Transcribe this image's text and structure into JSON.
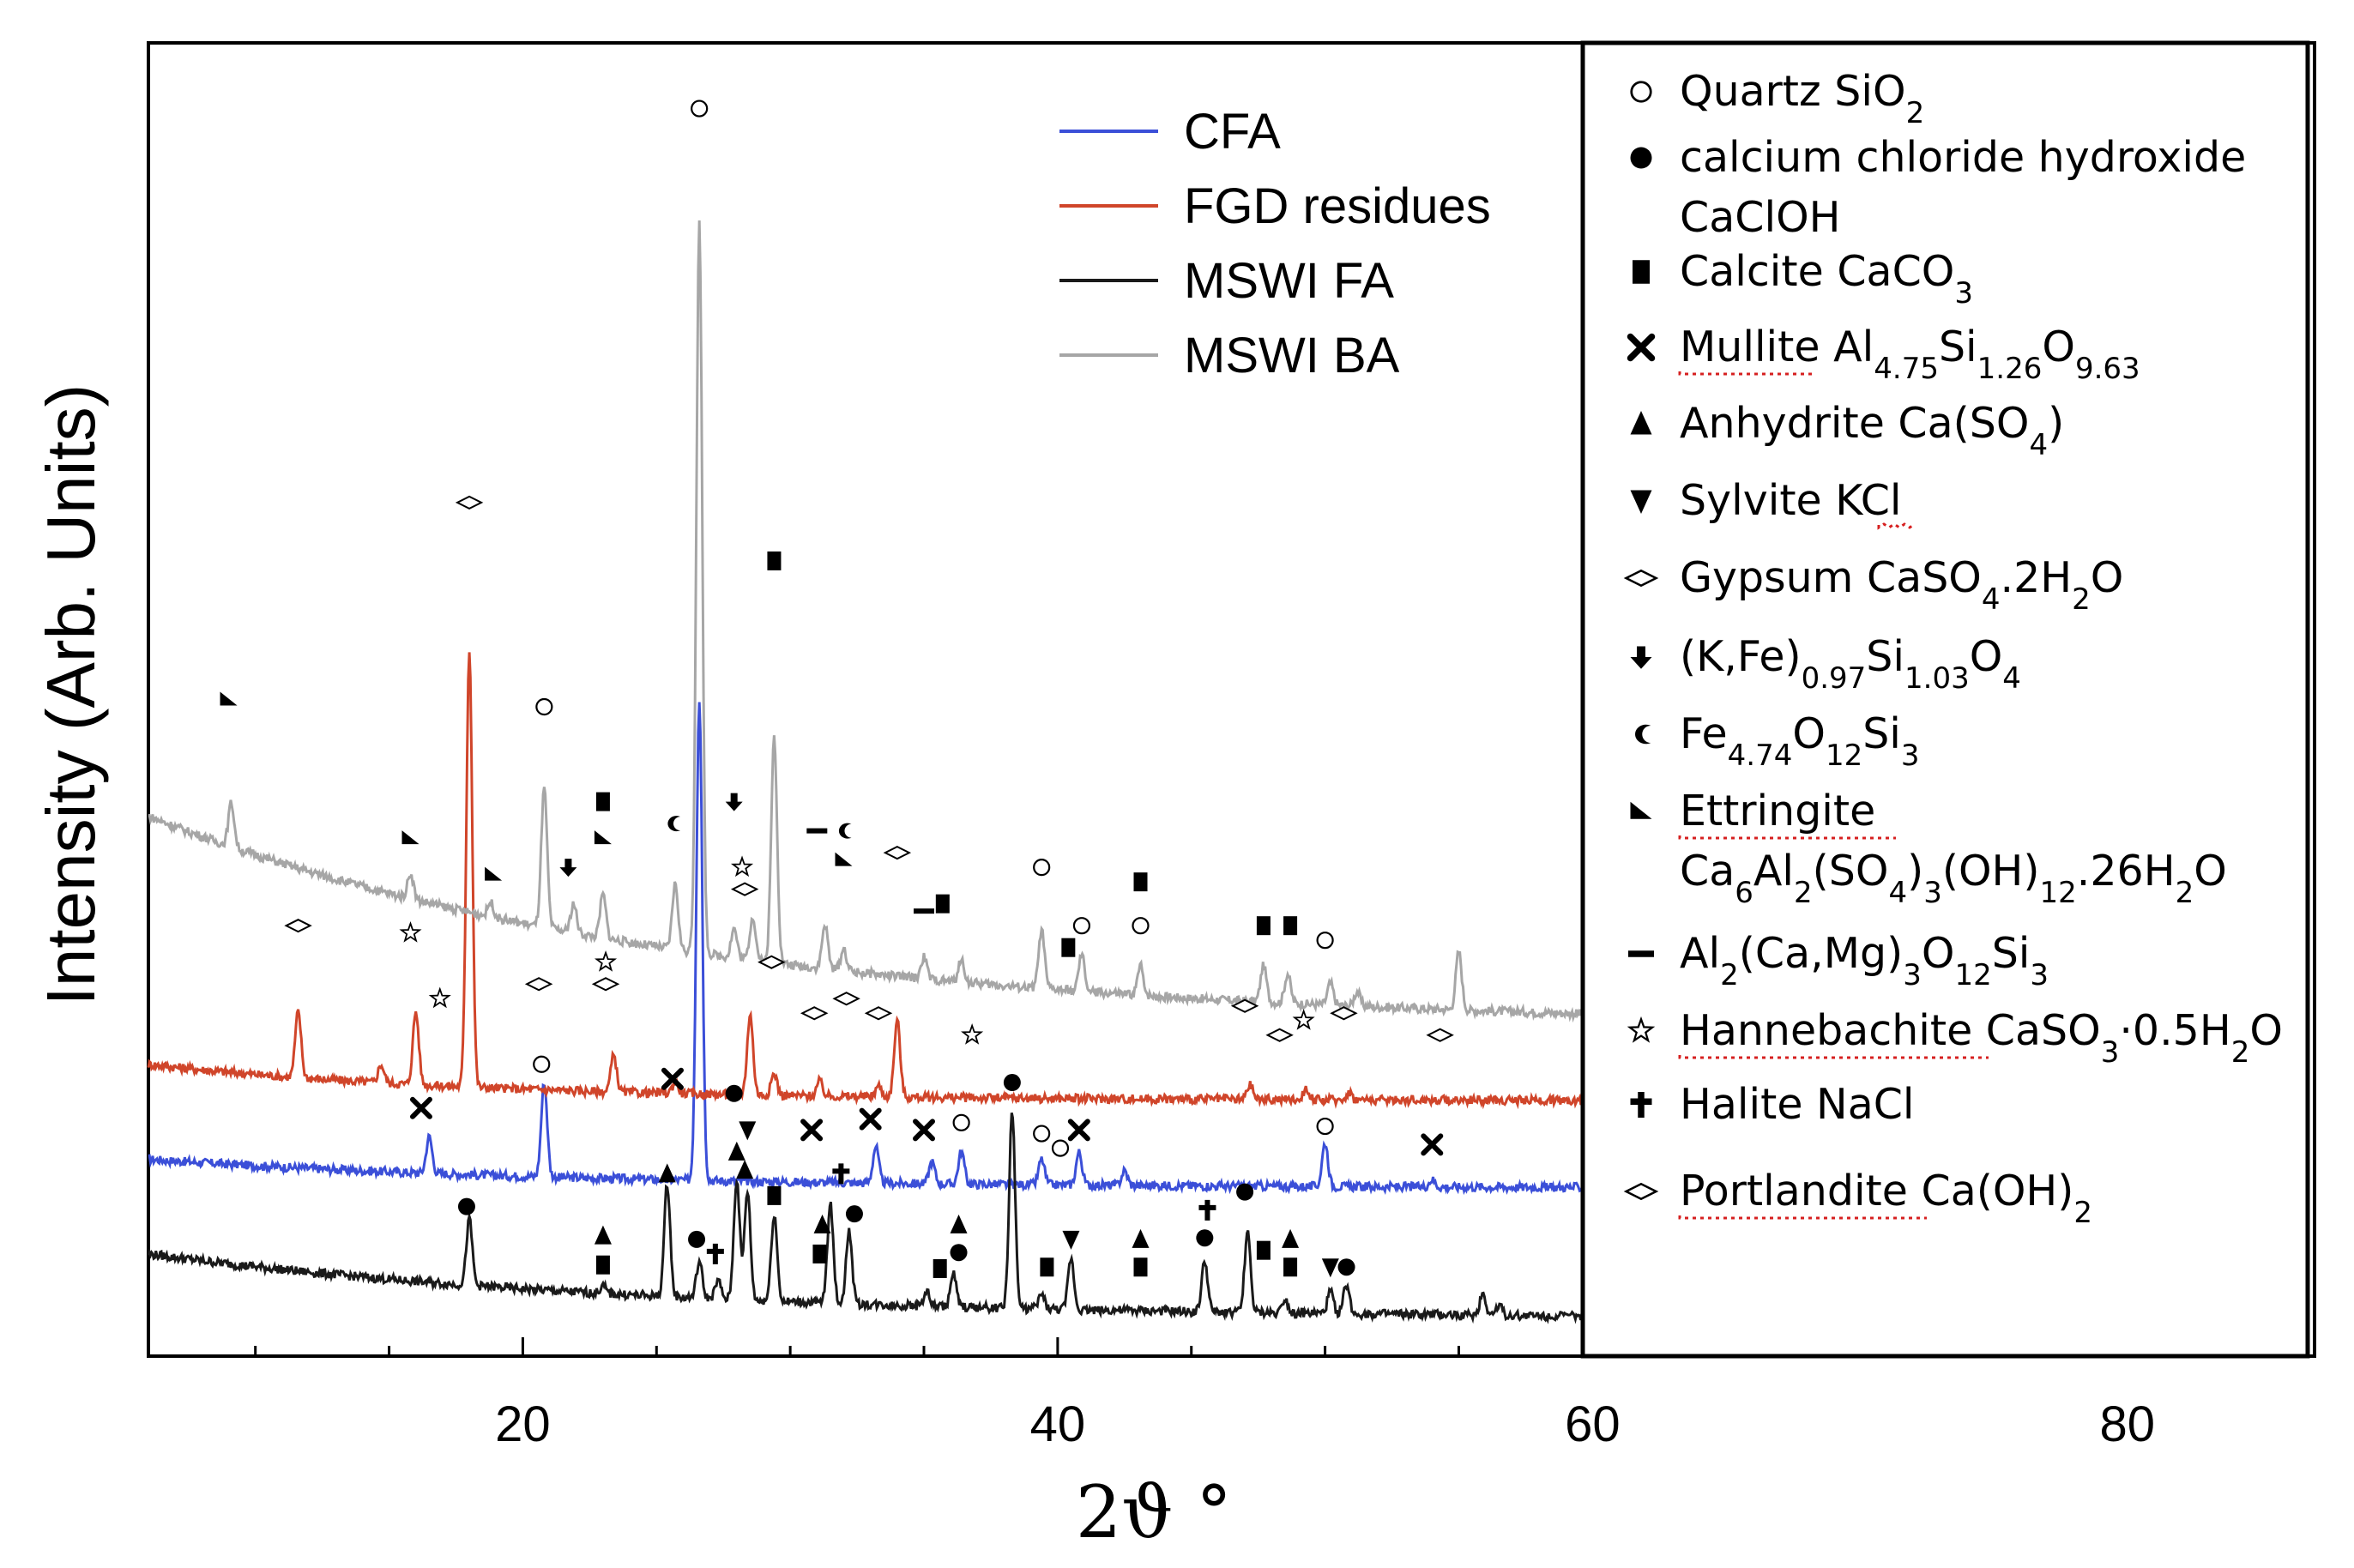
{
  "chart_data": {
    "type": "line",
    "ylabel": "Intensity (Arb. Units)",
    "xlabel": "2ϑ °",
    "xlim": [
      6,
      87
    ],
    "xticks": [
      20,
      40,
      60,
      80
    ],
    "series": [
      {
        "name": "CFA",
        "color": "#3b4fd8",
        "baseline": 1.8,
        "start": 2.2,
        "decay": 0.35,
        "peaks": [
          [
            16.5,
            0.5
          ],
          [
            20.8,
            1.3
          ],
          [
            26.6,
            6.6
          ],
          [
            33.2,
            0.5
          ],
          [
            35.3,
            0.3
          ],
          [
            36.4,
            0.45
          ],
          [
            39.4,
            0.35
          ],
          [
            40.8,
            0.45
          ],
          [
            42.5,
            0.2
          ],
          [
            50.0,
            0.6
          ],
          [
            54.0,
            0.1
          ]
        ]
      },
      {
        "name": "FGD residues",
        "color": "#d0452a",
        "baseline": 3.0,
        "start": 3.5,
        "decay": 0.45,
        "peaks": [
          [
            11.6,
            0.9
          ],
          [
            14.7,
            0.25
          ],
          [
            16.0,
            1.0
          ],
          [
            18.0,
            6.0
          ],
          [
            23.4,
            0.5
          ],
          [
            25.7,
            0.15
          ],
          [
            28.5,
            1.1
          ],
          [
            29.4,
            0.3
          ],
          [
            31.1,
            0.2
          ],
          [
            33.3,
            0.15
          ],
          [
            34.0,
            1.05
          ],
          [
            47.2,
            0.2
          ],
          [
            49.3,
            0.15
          ],
          [
            50.9,
            0.1
          ]
        ]
      },
      {
        "name": "MSWI FA",
        "color": "#1a1a1a",
        "baseline": 0.0,
        "start": 0.9,
        "decay": 0.3,
        "peaks": [
          [
            18.0,
            0.9
          ],
          [
            23.0,
            0.1
          ],
          [
            25.4,
            1.55
          ],
          [
            26.6,
            0.5
          ],
          [
            27.3,
            0.25
          ],
          [
            28.0,
            1.65
          ],
          [
            28.4,
            1.5
          ],
          [
            29.4,
            1.2
          ],
          [
            31.5,
            1.35
          ],
          [
            32.2,
            1.0
          ],
          [
            35.1,
            0.2
          ],
          [
            36.1,
            0.45
          ],
          [
            38.3,
            2.7
          ],
          [
            39.4,
            0.2
          ],
          [
            40.5,
            0.7
          ],
          [
            45.5,
            0.7
          ],
          [
            47.1,
            1.1
          ],
          [
            48.5,
            0.2
          ],
          [
            50.2,
            0.3
          ],
          [
            50.8,
            0.4
          ],
          [
            55.9,
            0.3
          ],
          [
            56.5,
            0.15
          ]
        ]
      },
      {
        "name": "MSWI BA",
        "color": "#a6a6a6",
        "baseline": 4.0,
        "start": 6.9,
        "decay": 0.28,
        "peaks": [
          [
            9.1,
            0.6
          ],
          [
            15.8,
            0.35
          ],
          [
            18.8,
            0.2
          ],
          [
            20.8,
            1.9
          ],
          [
            21.9,
            0.4
          ],
          [
            23.0,
            0.6
          ],
          [
            25.7,
            0.9
          ],
          [
            26.6,
            10.0
          ],
          [
            27.9,
            0.4
          ],
          [
            28.6,
            0.6
          ],
          [
            29.4,
            3.1
          ],
          [
            31.3,
            0.6
          ],
          [
            32.0,
            0.3
          ],
          [
            35.0,
            0.3
          ],
          [
            36.4,
            0.3
          ],
          [
            39.4,
            0.8
          ],
          [
            40.9,
            0.5
          ],
          [
            43.1,
            0.4
          ],
          [
            47.7,
            0.5
          ],
          [
            48.6,
            0.4
          ],
          [
            50.2,
            0.3
          ],
          [
            51.2,
            0.2
          ],
          [
            55.0,
            0.8
          ]
        ]
      }
    ],
    "annotations": [
      {
        "symbol": "circle-open",
        "x": 26.6,
        "y": 16.6
      },
      {
        "symbol": "diamond-open",
        "x": 18.0,
        "y": 11.2
      },
      {
        "symbol": "square-filled",
        "x": 29.4,
        "y": 10.4
      },
      {
        "symbol": "ettringite",
        "x": 9.0,
        "y": 8.5
      },
      {
        "symbol": "circle-open",
        "x": 20.8,
        "y": 8.4
      },
      {
        "symbol": "square-filled",
        "x": 23.0,
        "y": 7.1
      },
      {
        "symbol": "ettringite",
        "x": 15.8,
        "y": 6.6
      },
      {
        "symbol": "ettringite",
        "x": 23.0,
        "y": 6.6
      },
      {
        "symbol": "fe-silicate",
        "x": 25.6,
        "y": 6.8
      },
      {
        "symbol": "k-fe-silicate",
        "x": 27.9,
        "y": 7.1
      },
      {
        "symbol": "al-ca-mg",
        "x": 31.0,
        "y": 6.7
      },
      {
        "symbol": "fe-silicate",
        "x": 32.0,
        "y": 6.7
      },
      {
        "symbol": "star-open",
        "x": 28.2,
        "y": 6.2
      },
      {
        "symbol": "diamond-open",
        "x": 28.3,
        "y": 5.9
      },
      {
        "symbol": "k-fe-silicate",
        "x": 21.7,
        "y": 6.2
      },
      {
        "symbol": "ettringite",
        "x": 18.9,
        "y": 6.1
      },
      {
        "symbol": "ettringite",
        "x": 32.0,
        "y": 6.3
      },
      {
        "symbol": "diamond-open",
        "x": 34.0,
        "y": 6.4
      },
      {
        "symbol": "al-ca-mg",
        "x": 35.0,
        "y": 5.6
      },
      {
        "symbol": "square-filled",
        "x": 35.7,
        "y": 5.7
      },
      {
        "symbol": "circle-open",
        "x": 39.4,
        "y": 6.2
      },
      {
        "symbol": "square-filled",
        "x": 43.1,
        "y": 6.0
      },
      {
        "symbol": "circle-open",
        "x": 40.9,
        "y": 5.4
      },
      {
        "symbol": "square-filled",
        "x": 40.4,
        "y": 5.1
      },
      {
        "symbol": "circle-open",
        "x": 43.1,
        "y": 5.4
      },
      {
        "symbol": "square-filled",
        "x": 47.7,
        "y": 5.4
      },
      {
        "symbol": "square-filled",
        "x": 48.7,
        "y": 5.4
      },
      {
        "symbol": "circle-open",
        "x": 50.0,
        "y": 5.2
      },
      {
        "symbol": "diamond-open",
        "x": 11.6,
        "y": 5.4
      },
      {
        "symbol": "star-open",
        "x": 15.8,
        "y": 5.3
      },
      {
        "symbol": "star-open",
        "x": 23.1,
        "y": 4.9
      },
      {
        "symbol": "diamond-open",
        "x": 23.1,
        "y": 4.6
      },
      {
        "symbol": "star-open",
        "x": 16.9,
        "y": 4.4
      },
      {
        "symbol": "diamond-open",
        "x": 20.6,
        "y": 4.6
      },
      {
        "symbol": "diamond-open",
        "x": 29.3,
        "y": 4.9
      },
      {
        "symbol": "diamond-open",
        "x": 30.9,
        "y": 4.2
      },
      {
        "symbol": "diamond-open",
        "x": 32.1,
        "y": 4.4
      },
      {
        "symbol": "diamond-open",
        "x": 33.3,
        "y": 4.2
      },
      {
        "symbol": "star-open",
        "x": 36.8,
        "y": 3.9
      },
      {
        "symbol": "diamond-open",
        "x": 47.0,
        "y": 4.3
      },
      {
        "symbol": "star-open",
        "x": 49.2,
        "y": 4.1
      },
      {
        "symbol": "diamond-open",
        "x": 48.3,
        "y": 3.9
      },
      {
        "symbol": "diamond-open",
        "x": 50.7,
        "y": 4.2
      },
      {
        "symbol": "diamond-open",
        "x": 54.3,
        "y": 3.9
      },
      {
        "symbol": "circle-open",
        "x": 20.7,
        "y": 3.5
      },
      {
        "symbol": "mullite",
        "x": 25.6,
        "y": 3.3
      },
      {
        "symbol": "circle-filled",
        "x": 27.9,
        "y": 3.1
      },
      {
        "symbol": "circle-filled",
        "x": 38.3,
        "y": 3.25
      },
      {
        "symbol": "mullite",
        "x": 16.2,
        "y": 2.9
      },
      {
        "symbol": "sylvite",
        "x": 28.4,
        "y": 2.6
      },
      {
        "symbol": "mullite",
        "x": 30.8,
        "y": 2.6
      },
      {
        "symbol": "mullite",
        "x": 33.0,
        "y": 2.75
      },
      {
        "symbol": "mullite",
        "x": 35.0,
        "y": 2.6
      },
      {
        "symbol": "circle-open",
        "x": 36.4,
        "y": 2.7
      },
      {
        "symbol": "circle-open",
        "x": 39.4,
        "y": 2.55
      },
      {
        "symbol": "circle-open",
        "x": 40.1,
        "y": 2.35
      },
      {
        "symbol": "mullite",
        "x": 40.8,
        "y": 2.6
      },
      {
        "symbol": "circle-open",
        "x": 50.0,
        "y": 2.65
      },
      {
        "symbol": "mullite",
        "x": 54.0,
        "y": 2.4
      },
      {
        "symbol": "anhydrite",
        "x": 25.4,
        "y": 2.0
      },
      {
        "symbol": "anhydrite",
        "x": 28.0,
        "y": 2.3
      },
      {
        "symbol": "anhydrite",
        "x": 28.3,
        "y": 2.05
      },
      {
        "symbol": "halite",
        "x": 31.9,
        "y": 2.0
      },
      {
        "symbol": "square-filled",
        "x": 29.4,
        "y": 1.7
      },
      {
        "symbol": "halite",
        "x": 45.6,
        "y": 1.5
      },
      {
        "symbol": "circle-filled",
        "x": 47.0,
        "y": 1.75
      },
      {
        "symbol": "circle-filled",
        "x": 17.9,
        "y": 1.55
      },
      {
        "symbol": "circle-filled",
        "x": 32.4,
        "y": 1.45
      },
      {
        "symbol": "anhydrite",
        "x": 23.0,
        "y": 1.15
      },
      {
        "symbol": "square-filled",
        "x": 23.0,
        "y": 0.75
      },
      {
        "symbol": "circle-filled",
        "x": 26.5,
        "y": 1.1
      },
      {
        "symbol": "halite",
        "x": 27.2,
        "y": 0.9
      },
      {
        "symbol": "anhydrite",
        "x": 31.2,
        "y": 1.3
      },
      {
        "symbol": "square-filled",
        "x": 31.1,
        "y": 0.9
      },
      {
        "symbol": "anhydrite",
        "x": 36.3,
        "y": 1.3
      },
      {
        "symbol": "circle-filled",
        "x": 36.3,
        "y": 0.92
      },
      {
        "symbol": "square-filled",
        "x": 35.6,
        "y": 0.7
      },
      {
        "symbol": "square-filled",
        "x": 39.6,
        "y": 0.72
      },
      {
        "symbol": "sylvite",
        "x": 40.5,
        "y": 1.1
      },
      {
        "symbol": "anhydrite",
        "x": 43.1,
        "y": 1.1
      },
      {
        "symbol": "square-filled",
        "x": 43.1,
        "y": 0.72
      },
      {
        "symbol": "circle-filled",
        "x": 45.5,
        "y": 1.12
      },
      {
        "symbol": "square-filled",
        "x": 47.7,
        "y": 0.95
      },
      {
        "symbol": "anhydrite",
        "x": 48.7,
        "y": 1.1
      },
      {
        "symbol": "square-filled",
        "x": 48.7,
        "y": 0.72
      },
      {
        "symbol": "sylvite",
        "x": 50.2,
        "y": 0.72
      },
      {
        "symbol": "circle-filled",
        "x": 50.8,
        "y": 0.72
      }
    ]
  },
  "legend": {
    "items": [
      {
        "label": "CFA",
        "color": "#3b4fd8"
      },
      {
        "label": "FGD residues",
        "color": "#d0452a"
      },
      {
        "label": "MSWI FA",
        "color": "#1a1a1a"
      },
      {
        "label": "MSWI BA",
        "color": "#a6a6a6"
      }
    ]
  },
  "phase_key": [
    {
      "symbol": "circle-open",
      "name": "Quartz SiO",
      "sub": "2"
    },
    {
      "symbol": "circle-filled",
      "name": "calcium chloride hydroxide",
      "line2": "CaClOH"
    },
    {
      "symbol": "square-filled",
      "name": "Calcite CaCO",
      "sub": "3"
    },
    {
      "symbol": "mullite",
      "name": "Mullite Al",
      "formula": [
        [
          "4.75",
          "Si"
        ],
        [
          "1.26",
          "O"
        ],
        [
          "9.63",
          ""
        ]
      ]
    },
    {
      "symbol": "anhydrite",
      "name": "Anhydrite Ca(SO",
      "sub": "4",
      "after": ")"
    },
    {
      "symbol": "sylvite",
      "name": "Sylvite KCl"
    },
    {
      "symbol": "diamond-open",
      "name": "Gypsum CaSO",
      "sub": "4",
      "after": ".2H",
      "sub2": "2",
      "after2": "O"
    },
    {
      "symbol": "k-fe-silicate",
      "name": "(K,Fe)",
      "sub": "0.97",
      "after": "Si",
      "sub2": "1.03",
      "after2": "O",
      "sub3": "4"
    },
    {
      "symbol": "fe-silicate",
      "name": "Fe",
      "sub": "4.74",
      "after": "O",
      "sub2": "12",
      "after2": "Si",
      "sub3": "3"
    },
    {
      "symbol": "ettringite",
      "name": "Ettringite",
      "line2": "Ca6Al2(SO4)3(OH)12.26H2O"
    },
    {
      "symbol": "al-ca-mg",
      "name": "Al",
      "sub": "2",
      "after": "(Ca,Mg)",
      "sub2": "3",
      "after2": "O",
      "sub3": "12",
      "after3": "Si",
      "sub4": "3"
    },
    {
      "symbol": "star-open",
      "name": "Hannebachite CaSO",
      "sub": "3",
      "after": "·0.5H",
      "sub2": "2",
      "after2": "O"
    },
    {
      "symbol": "halite",
      "name": "Halite NaCl"
    },
    {
      "symbol": "diamond-open",
      "name": "Portlandite Ca(OH)",
      "sub": "2"
    }
  ]
}
